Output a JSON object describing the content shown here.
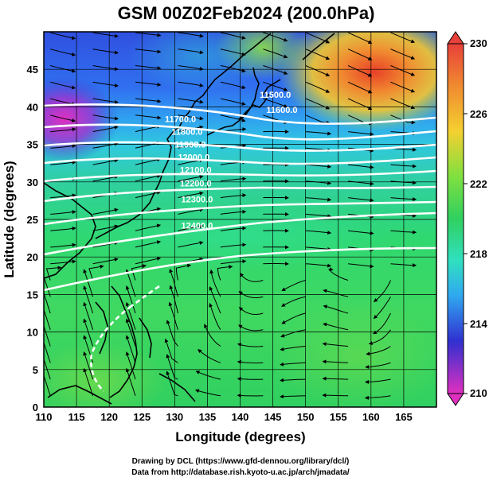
{
  "title": "GSM 00Z02Feb2024 (200.0hPa)",
  "axes": {
    "xlabel": "Longitude (degrees)",
    "ylabel": "Latitude (degrees)",
    "xlim": [
      110,
      170
    ],
    "ylim": [
      0,
      50
    ],
    "xticks": [
      "110",
      "115",
      "120",
      "125",
      "130",
      "135",
      "140",
      "145",
      "150",
      "155",
      "160",
      "165"
    ],
    "yticks": [
      "0",
      "5",
      "10",
      "15",
      "20",
      "25",
      "30",
      "35",
      "40",
      "45"
    ]
  },
  "colorbar": {
    "min": 210,
    "max": 230,
    "labels": [
      "230",
      "226",
      "222",
      "218",
      "214",
      "210"
    ]
  },
  "contour_labels": [
    {
      "text": "11500.0",
      "lon": 143,
      "lat": 41.2
    },
    {
      "text": "11600.0",
      "lon": 144,
      "lat": 39.2
    },
    {
      "text": "11700.0",
      "lon": 128.5,
      "lat": 38.0
    },
    {
      "text": "11800.0",
      "lon": 129.5,
      "lat": 36.3
    },
    {
      "text": "11900.0",
      "lon": 130,
      "lat": 34.6
    },
    {
      "text": "12000.0",
      "lon": 130.5,
      "lat": 32.9
    },
    {
      "text": "12100.0",
      "lon": 130.8,
      "lat": 31.2
    },
    {
      "text": "12200.0",
      "lon": 130.8,
      "lat": 29.4
    },
    {
      "text": "12300.0",
      "lon": 131,
      "lat": 27.3
    },
    {
      "text": "12400.0",
      "lon": 131,
      "lat": 23.8
    }
  ],
  "credits": {
    "line1": "Drawing by DCL (https://www.gfd-dennou.org/library/dcl/)",
    "line2": "Data from http://database.rish.kyoto-u.ac.jp/arch/jmadata/"
  },
  "colors": {
    "cold": "#3030d0",
    "warm": "#e04020",
    "mid": "#30d060"
  }
}
